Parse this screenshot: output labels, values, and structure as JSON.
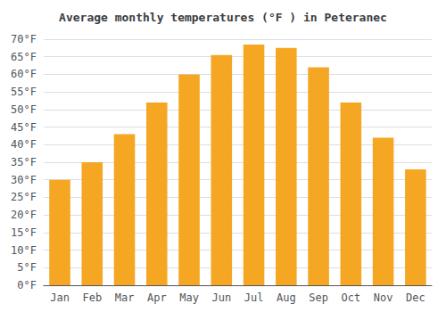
{
  "chart_data": {
    "type": "bar",
    "title": "Average monthly temperatures (°F ) in Peteranec",
    "categories": [
      "Jan",
      "Feb",
      "Mar",
      "Apr",
      "May",
      "Jun",
      "Jul",
      "Aug",
      "Sep",
      "Oct",
      "Nov",
      "Dec"
    ],
    "values": [
      30,
      35,
      43,
      52,
      60,
      65.5,
      68.5,
      67.5,
      62,
      52,
      42,
      33
    ],
    "color": "#F5A623",
    "ylim": [
      0,
      70
    ],
    "yticks": [
      {
        "value": 0,
        "label": "0°F"
      },
      {
        "value": 5,
        "label": "5°F"
      },
      {
        "value": 10,
        "label": "10°F"
      },
      {
        "value": 15,
        "label": "15°F"
      },
      {
        "value": 20,
        "label": "20°F"
      },
      {
        "value": 25,
        "label": "25°F"
      },
      {
        "value": 30,
        "label": "30°F"
      },
      {
        "value": 35,
        "label": "35°F"
      },
      {
        "value": 40,
        "label": "40°F"
      },
      {
        "value": 45,
        "label": "45°F"
      },
      {
        "value": 50,
        "label": "50°F"
      },
      {
        "value": 55,
        "label": "55°F"
      },
      {
        "value": 60,
        "label": "60°F"
      },
      {
        "value": 65,
        "label": "65°F"
      },
      {
        "value": 70,
        "label": "70°F"
      }
    ],
    "grid": true
  }
}
